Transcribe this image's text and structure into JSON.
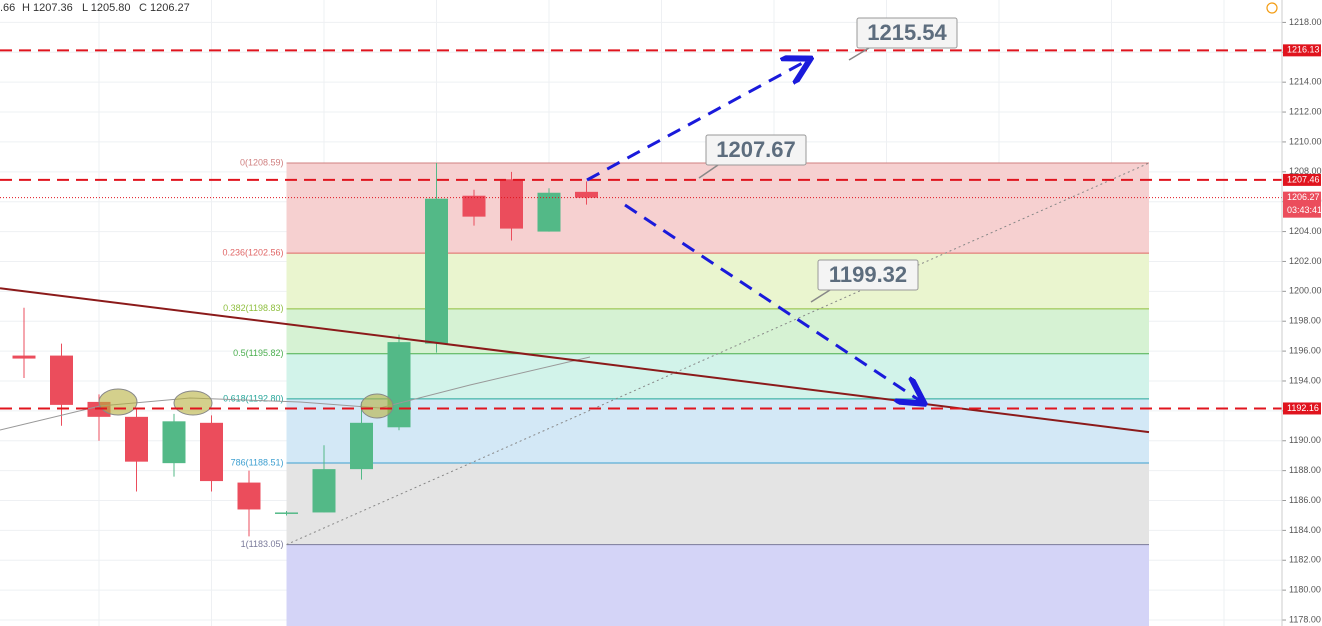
{
  "chart_data": {
    "type": "candlestick",
    "header": {
      "open": ".66",
      "high": "H 1207.36",
      "low": "L 1205.80",
      "close": "C 1206.27"
    },
    "categories": [
      null,
      null,
      null,
      null,
      null,
      null,
      null,
      null,
      null,
      null,
      null,
      null,
      null,
      null,
      null,
      null
    ],
    "open": [
      1195.7,
      1195.7,
      1192.6,
      1191.6,
      1188.5,
      1191.2,
      1187.2,
      1185.1,
      1185.2,
      1188.1,
      1190.9,
      1196.5,
      1206.4,
      1207.5,
      1204.0,
      1206.66
    ],
    "high": [
      1198.9,
      1196.5,
      1193.1,
      1192.1,
      1191.8,
      1191.7,
      1188.0,
      1185.3,
      1189.7,
      1192.6,
      1197.1,
      1208.59,
      1206.8,
      1208.0,
      1206.9,
      1207.36
    ],
    "low": [
      1194.2,
      1191.0,
      1190.0,
      1186.6,
      1187.6,
      1186.6,
      1183.6,
      1185.0,
      1185.2,
      1187.4,
      1190.7,
      1195.9,
      1204.4,
      1203.4,
      1204.0,
      1205.8
    ],
    "close": [
      1195.5,
      1192.4,
      1191.6,
      1188.6,
      1191.3,
      1187.3,
      1185.4,
      1185.2,
      1188.1,
      1191.2,
      1196.6,
      1206.2,
      1205.0,
      1204.2,
      1206.6,
      1206.27
    ],
    "up_color": "#53b987",
    "down_color": "#eb4d5c",
    "ylim": [
      1177.6,
      1219.5
    ],
    "yticks": [
      {
        "value": 1218,
        "label": "1218.00"
      },
      {
        "value": 1216,
        "label": "1216.00"
      },
      {
        "value": 1214,
        "label": "1214.00"
      },
      {
        "value": 1212,
        "label": "1212.00"
      },
      {
        "value": 1210,
        "label": "1210.00"
      },
      {
        "value": 1208,
        "label": "1208.00"
      },
      {
        "value": 1206,
        "label": "1206.00"
      },
      {
        "value": 1204,
        "label": "1204.00"
      },
      {
        "value": 1202,
        "label": "1202.00"
      },
      {
        "value": 1200,
        "label": "1200.00"
      },
      {
        "value": 1198,
        "label": "1198.00"
      },
      {
        "value": 1196,
        "label": "1196.00"
      },
      {
        "value": 1194,
        "label": "1194.00"
      },
      {
        "value": 1192,
        "label": "1192.00"
      },
      {
        "value": 1190,
        "label": "1190.00"
      },
      {
        "value": 1188,
        "label": "1188.00"
      },
      {
        "value": 1186,
        "label": "1186.00"
      },
      {
        "value": 1184,
        "label": "1184.00"
      },
      {
        "value": 1182,
        "label": "1182.00"
      },
      {
        "value": 1180,
        "label": "1180.00"
      },
      {
        "value": 1178,
        "label": "1178.00"
      }
    ],
    "grid": true,
    "fibonacci": [
      {
        "value": 1208.59,
        "label": "0(1208.59)",
        "color": "#d08080",
        "fill": "#f6d0d0"
      },
      {
        "value": 1202.56,
        "label": "0.236(1202.56)",
        "color": "#e06666",
        "fill": "#eaf5cf"
      },
      {
        "value": 1198.83,
        "label": "0.382(1198.83)",
        "color": "#8fbf3f",
        "fill": "#d6f2d3"
      },
      {
        "value": 1195.82,
        "label": "0.5(1195.82)",
        "color": "#4caf50",
        "fill": "#d2f3ea"
      },
      {
        "value": 1192.8,
        "label": "0.618(1192.80)",
        "color": "#26a69a",
        "fill": "#d3e8f6"
      },
      {
        "value": 1188.51,
        "label": "786(1188.51)",
        "color": "#3d9fd0",
        "fill": "#e4e4e4"
      },
      {
        "value": 1183.05,
        "label": "1(1183.05)",
        "color": "#7a7a9a",
        "fill": "#d4d4f7"
      }
    ],
    "price_lines": [
      1216.13,
      1207.46,
      1192.16
    ],
    "line_color": "#e0141e",
    "countdown": "03:43:41",
    "trendline": [
      1200.21,
      1190.58
    ],
    "trendline_color": "#8b1a1a",
    "annotations": [
      1215.54,
      1207.67,
      1199.32
    ]
  }
}
